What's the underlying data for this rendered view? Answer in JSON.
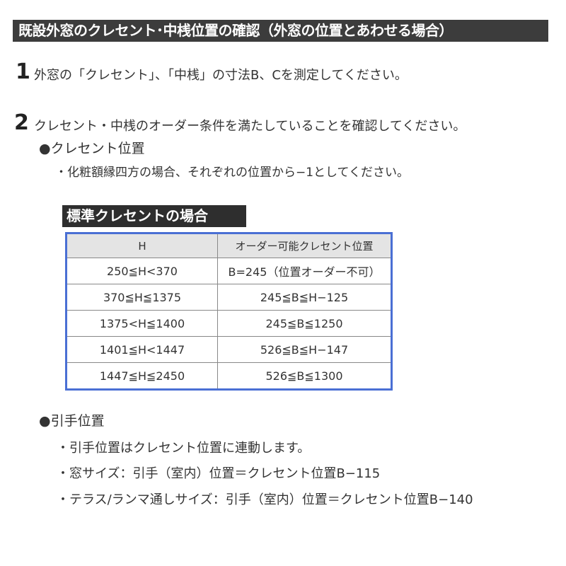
{
  "title": "既設外窓のクレセント･中桟位置の確認（外窓の位置とあわせる場合）",
  "step1": {
    "num": "1",
    "text": "外窓の「クレセント」、「中桟」の寸法B、Cを測定してください。"
  },
  "step2": {
    "num": "2",
    "text": "クレセント・中桟のオーダー条件を満たしていることを確認してください。"
  },
  "crescent": {
    "heading": "●クレセント位置",
    "note": "・化粧額縁四方の場合、それぞれの位置から−1としてください。"
  },
  "table": {
    "label": "標準クレセントの場合",
    "headers": [
      "H",
      "オーダー可能クレセント位置"
    ],
    "rows": [
      [
        "250≦H<370",
        "B=245（位置オーダー不可）"
      ],
      [
        "370≦H≦1375",
        "245≦B≦H−125"
      ],
      [
        "1375<H≦1400",
        "245≦B≦1250"
      ],
      [
        "1401≦H<1447",
        "526≦B≦H−147"
      ],
      [
        "1447≦H≦2450",
        "526≦B≦1300"
      ]
    ]
  },
  "handle": {
    "heading": "●引手位置",
    "items": [
      "・引手位置はクレセント位置に連動します。",
      "・窓サイズ：引手（室内）位置＝クレセント位置B−115",
      "・テラス/ランマ通しサイズ：引手（室内）位置＝クレセント位置B−140"
    ]
  }
}
